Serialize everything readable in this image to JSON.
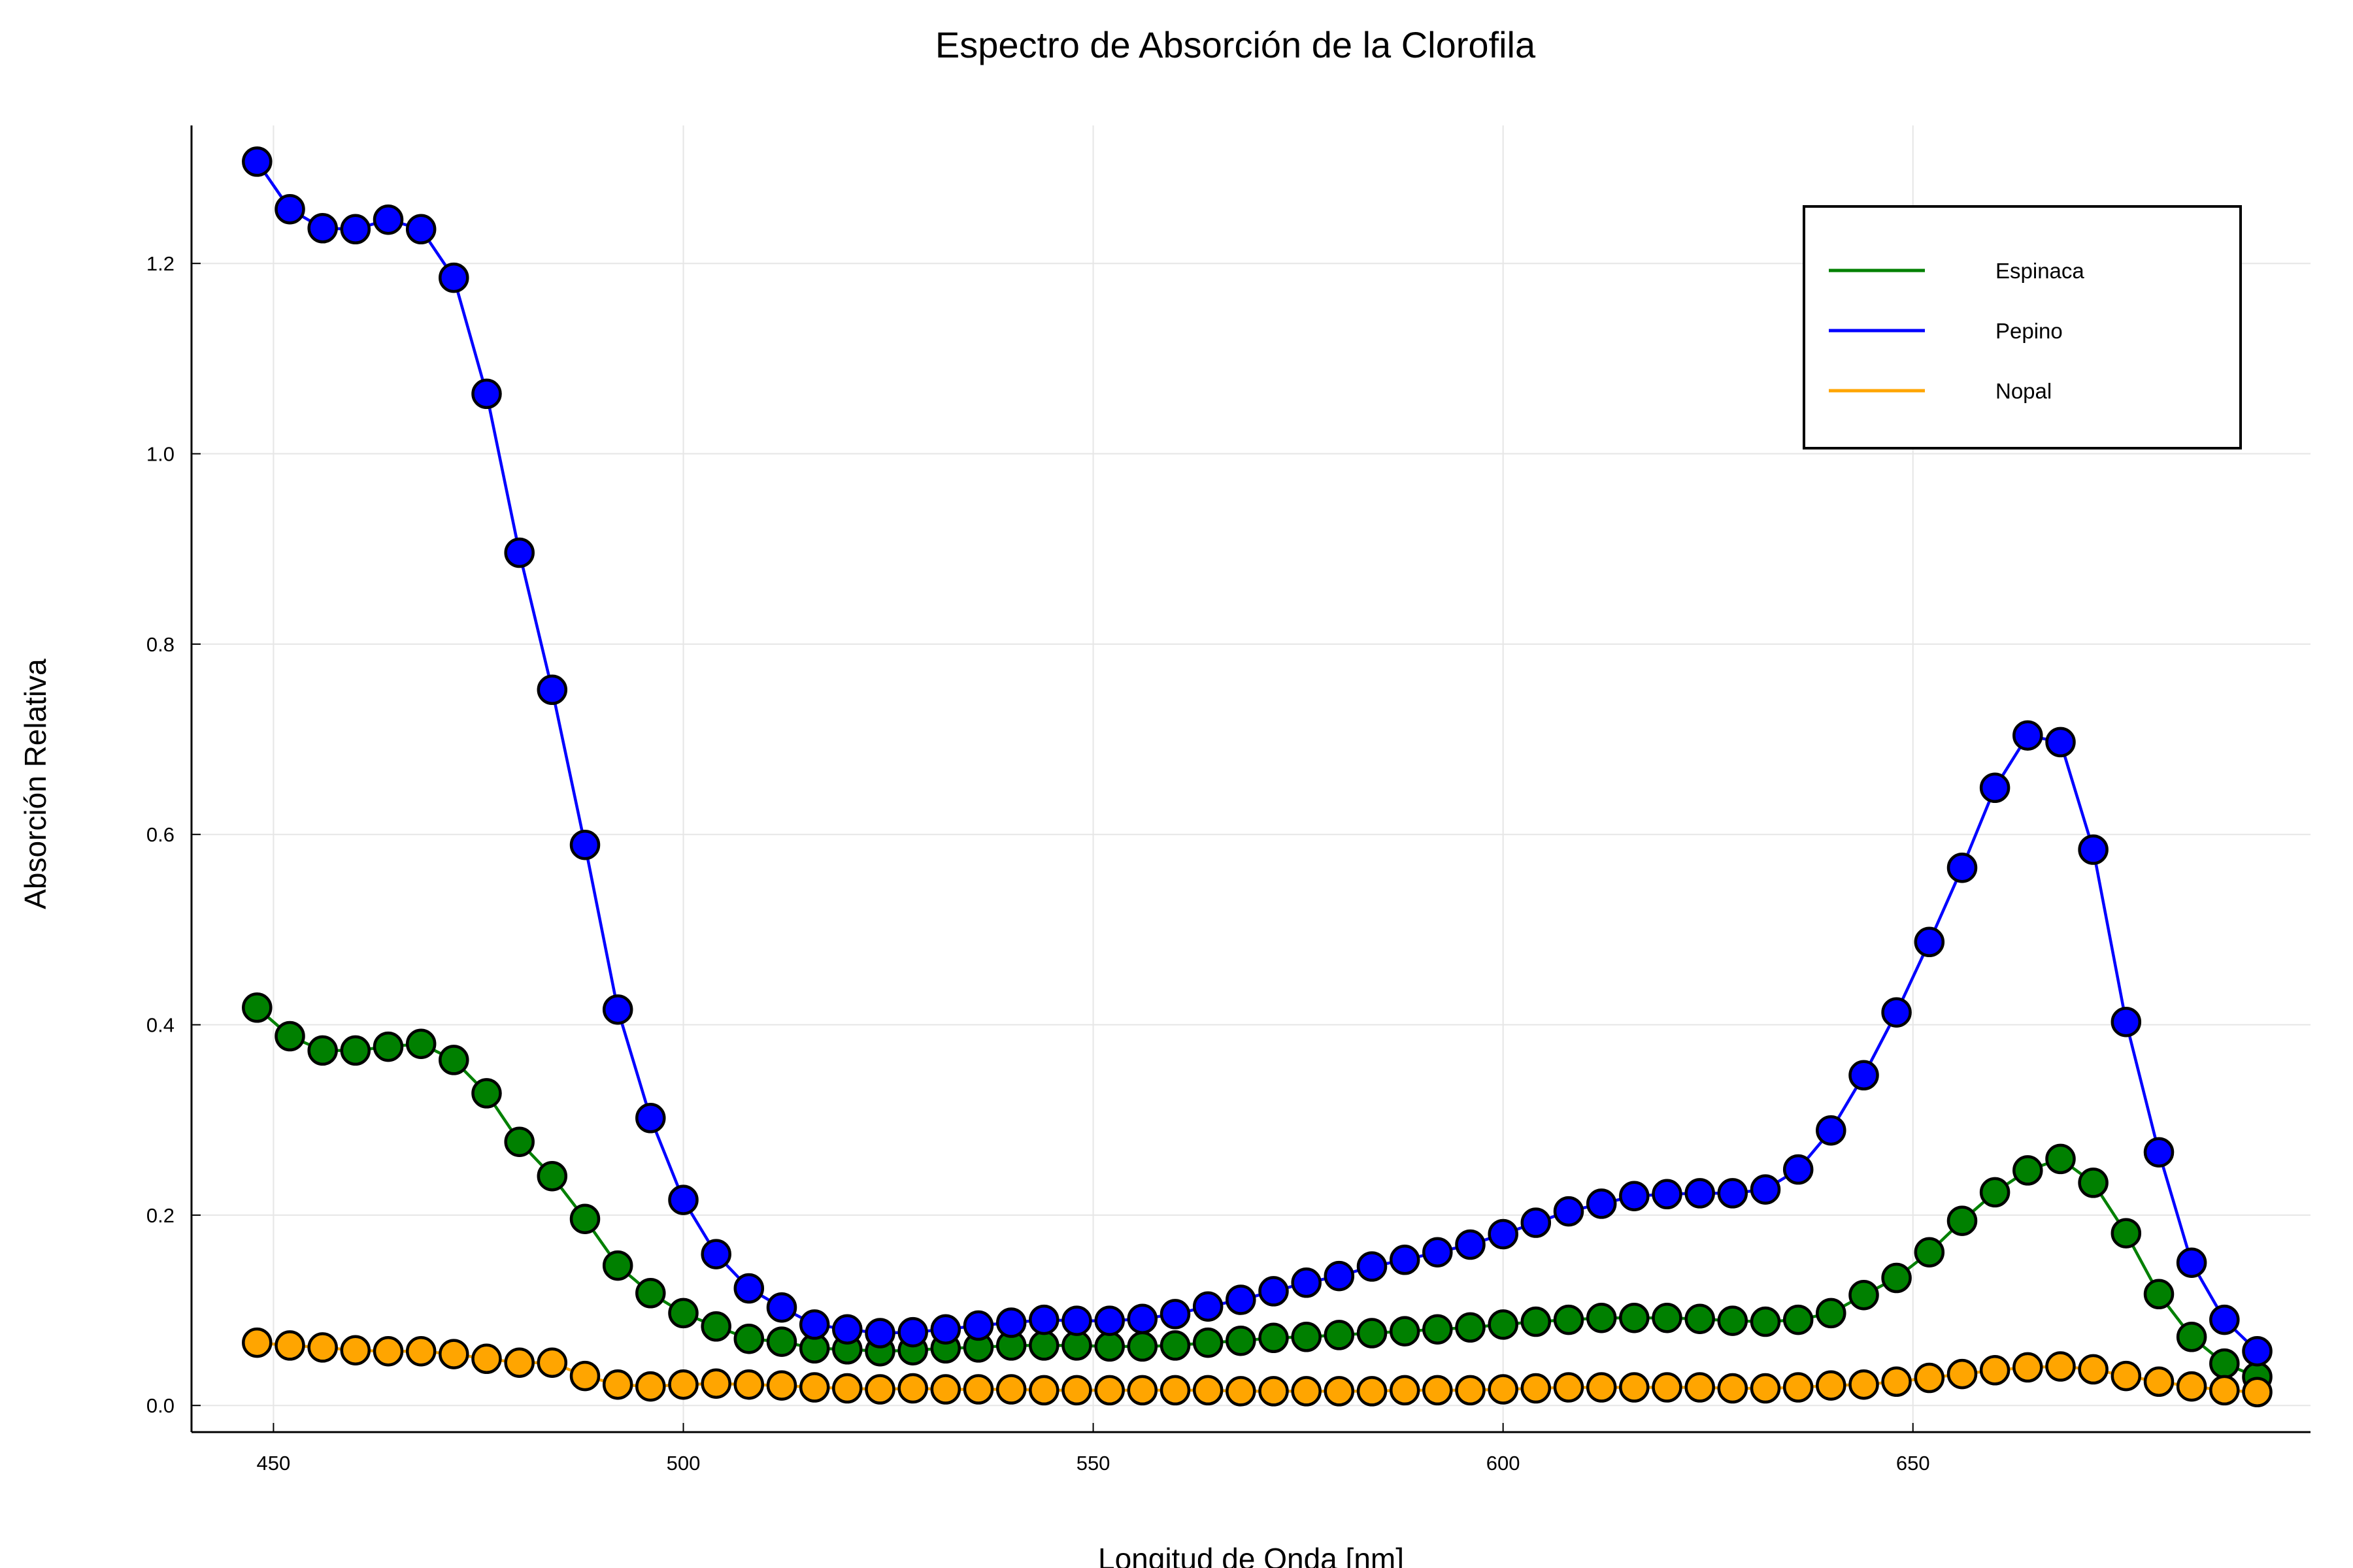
{
  "chart_data": {
    "type": "line",
    "title": "Espectro de Absorción de la Clorofila",
    "xlabel": "Longitud de Onda [nm]",
    "ylabel": "Absorción Relativa",
    "xlim": [
      440,
      698.5
    ],
    "ylim": [
      -0.028,
      1.345
    ],
    "xticks": [
      450,
      500,
      550,
      600,
      650
    ],
    "xtick_labels": [
      "450",
      "500",
      "550",
      "600",
      "650"
    ],
    "yticks": [
      0.0,
      0.2,
      0.4,
      0.6,
      0.8,
      1.0,
      1.2
    ],
    "ytick_labels": [
      "0.0",
      "0.2",
      "0.4",
      "0.6",
      "0.8",
      "1.0",
      "1.2"
    ],
    "grid": true,
    "legend_position": "top-right",
    "x": [
      448,
      452,
      456,
      460,
      464,
      468,
      472,
      476,
      480,
      484,
      488,
      492,
      496,
      500,
      504,
      508,
      512,
      516,
      520,
      524,
      528,
      532,
      536,
      540,
      544,
      548,
      552,
      556,
      560,
      564,
      568,
      572,
      576,
      580,
      584,
      588,
      592,
      596,
      600,
      604,
      608,
      612,
      616,
      620,
      624,
      628,
      632,
      636,
      640,
      644,
      648,
      652,
      656,
      660,
      664,
      668,
      672,
      676,
      680,
      684,
      688,
      692
    ],
    "series": [
      {
        "name": "Espinaca",
        "color": "#008000",
        "values": [
          0.418,
          0.388,
          0.373,
          0.373,
          0.377,
          0.38,
          0.363,
          0.328,
          0.277,
          0.241,
          0.196,
          0.147,
          0.118,
          0.097,
          0.083,
          0.07,
          0.067,
          0.06,
          0.059,
          0.057,
          0.058,
          0.06,
          0.061,
          0.063,
          0.063,
          0.063,
          0.062,
          0.062,
          0.063,
          0.066,
          0.068,
          0.071,
          0.072,
          0.074,
          0.076,
          0.078,
          0.08,
          0.082,
          0.085,
          0.088,
          0.09,
          0.092,
          0.092,
          0.092,
          0.091,
          0.089,
          0.088,
          0.09,
          0.097,
          0.116,
          0.134,
          0.161,
          0.194,
          0.224,
          0.247,
          0.259,
          0.234,
          0.181,
          0.117,
          0.072,
          0.044,
          0.03
        ]
      },
      {
        "name": "Pepino",
        "color": "#0000ff",
        "values": [
          1.307,
          1.257,
          1.237,
          1.236,
          1.246,
          1.236,
          1.185,
          1.063,
          0.896,
          0.752,
          0.589,
          0.416,
          0.302,
          0.216,
          0.159,
          0.123,
          0.103,
          0.085,
          0.08,
          0.076,
          0.077,
          0.08,
          0.084,
          0.087,
          0.09,
          0.089,
          0.089,
          0.091,
          0.096,
          0.104,
          0.111,
          0.12,
          0.129,
          0.136,
          0.146,
          0.153,
          0.161,
          0.169,
          0.18,
          0.192,
          0.204,
          0.212,
          0.22,
          0.222,
          0.223,
          0.223,
          0.227,
          0.248,
          0.289,
          0.347,
          0.413,
          0.487,
          0.565,
          0.649,
          0.704,
          0.697,
          0.584,
          0.403,
          0.266,
          0.15,
          0.09,
          0.057
        ]
      },
      {
        "name": "Nopal",
        "color": "#ffa500",
        "values": [
          0.066,
          0.063,
          0.061,
          0.058,
          0.057,
          0.057,
          0.054,
          0.049,
          0.045,
          0.045,
          0.031,
          0.022,
          0.02,
          0.022,
          0.023,
          0.022,
          0.021,
          0.019,
          0.018,
          0.017,
          0.018,
          0.017,
          0.017,
          0.017,
          0.016,
          0.016,
          0.016,
          0.016,
          0.016,
          0.016,
          0.015,
          0.015,
          0.015,
          0.015,
          0.015,
          0.016,
          0.016,
          0.016,
          0.017,
          0.018,
          0.019,
          0.019,
          0.019,
          0.019,
          0.019,
          0.018,
          0.018,
          0.019,
          0.021,
          0.022,
          0.025,
          0.029,
          0.033,
          0.037,
          0.04,
          0.041,
          0.038,
          0.031,
          0.025,
          0.02,
          0.016,
          0.014
        ]
      }
    ]
  }
}
